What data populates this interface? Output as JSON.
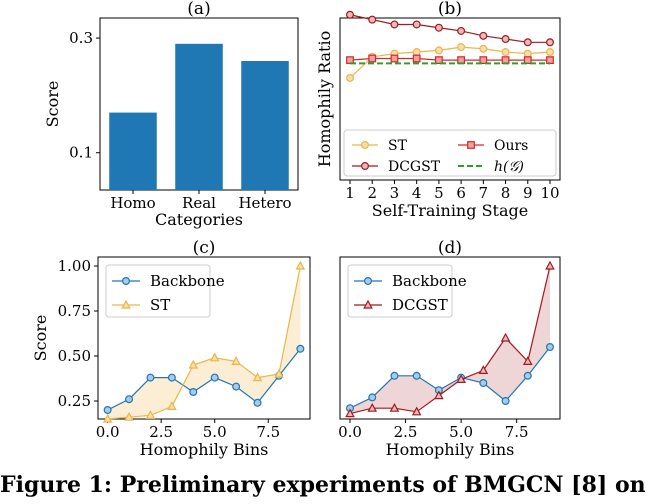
{
  "figure": {
    "caption": "Figure 1: Preliminary experiments of BMGCN [8] on"
  },
  "colors": {
    "bar": "#1f77b4",
    "st": "#e8b74a",
    "dcgst": "#a2191f",
    "ours": "#d6272c",
    "h_line": "#2ca02c",
    "backbone": "#1f77b4",
    "st_fill": "#fbeed5",
    "dcgst_fill": "#eed6d6"
  },
  "chart_data": [
    {
      "id": "a",
      "panel_label": "(a)",
      "type": "bar",
      "categories": [
        "Homo",
        "Real",
        "Hetero"
      ],
      "values": [
        0.17,
        0.29,
        0.26
      ],
      "xlabel": "Categories",
      "ylabel": "Score",
      "ylim": [
        0.035,
        0.335
      ],
      "yticks": [
        0.1,
        0.3
      ],
      "ytick_labels": [
        "0.1",
        "0.3"
      ]
    },
    {
      "id": "b",
      "panel_label": "(b)",
      "type": "line",
      "x": [
        1,
        2,
        3,
        4,
        5,
        6,
        7,
        8,
        9,
        10
      ],
      "xtick_labels": [
        "1",
        "2",
        "3",
        "4",
        "5",
        "6",
        "7",
        "8",
        "9",
        "10"
      ],
      "xlabel": "Self-Training Stage",
      "ylabel": "Homophily Ratio",
      "ylim": [
        0,
        1
      ],
      "yticks": [],
      "legend_position": "bottom",
      "series": [
        {
          "name": "ST",
          "marker": "circle",
          "values": [
            0.63,
            0.76,
            0.78,
            0.79,
            0.8,
            0.82,
            0.81,
            0.79,
            0.78,
            0.79
          ]
        },
        {
          "name": "DCGST",
          "marker": "circle",
          "values": [
            1.02,
            0.99,
            0.96,
            0.96,
            0.94,
            0.92,
            0.89,
            0.87,
            0.85,
            0.85
          ]
        },
        {
          "name": "Ours",
          "marker": "square",
          "values": [
            0.74,
            0.75,
            0.75,
            0.75,
            0.74,
            0.74,
            0.74,
            0.74,
            0.74,
            0.74
          ]
        },
        {
          "name": "h(𝒢)",
          "marker": "none",
          "dashed": true,
          "values": [
            0.72,
            0.72,
            0.72,
            0.72,
            0.72,
            0.72,
            0.72,
            0.72,
            0.72,
            0.72
          ]
        }
      ]
    },
    {
      "id": "c",
      "panel_label": "(c)",
      "type": "line",
      "x": [
        0,
        1,
        2,
        3,
        4,
        5,
        6,
        7,
        8,
        9
      ],
      "xlabel": "Homophily Bins",
      "ylabel": "Score",
      "xlim": [
        -0.45,
        9.45
      ],
      "ylim": [
        0.15,
        1.05
      ],
      "xticks": [
        0,
        2.5,
        5,
        7.5
      ],
      "xtick_labels": [
        "0.0",
        "2.5",
        "5.0",
        "7.5"
      ],
      "yticks": [
        0.25,
        0.5,
        0.75,
        1.0
      ],
      "ytick_labels": [
        "0.25",
        "0.50",
        "0.75",
        "1.00"
      ],
      "legend_position": "top-left",
      "series": [
        {
          "name": "Backbone",
          "marker": "circle",
          "values": [
            0.2,
            0.26,
            0.38,
            0.38,
            0.3,
            0.38,
            0.33,
            0.24,
            0.39,
            0.54
          ]
        },
        {
          "name": "ST",
          "marker": "triangle",
          "values": [
            0.15,
            0.16,
            0.17,
            0.22,
            0.45,
            0.49,
            0.47,
            0.38,
            0.4,
            1.0
          ]
        }
      ]
    },
    {
      "id": "d",
      "panel_label": "(d)",
      "type": "line",
      "x": [
        0,
        1,
        2,
        3,
        4,
        5,
        6,
        7,
        8,
        9
      ],
      "xlabel": "Homophily Bins",
      "ylabel": "",
      "xlim": [
        -0.45,
        9.45
      ],
      "ylim": [
        0.15,
        1.05
      ],
      "xticks": [
        0,
        2.5,
        5,
        7.5
      ],
      "xtick_labels": [
        "0.0",
        "2.5",
        "5.0",
        "7.5"
      ],
      "yticks": [],
      "legend_position": "top-left",
      "series": [
        {
          "name": "Backbone",
          "marker": "circle",
          "values": [
            0.21,
            0.27,
            0.39,
            0.39,
            0.31,
            0.38,
            0.35,
            0.25,
            0.39,
            0.55
          ]
        },
        {
          "name": "DCGST",
          "marker": "triangle",
          "values": [
            0.18,
            0.21,
            0.21,
            0.19,
            0.28,
            0.37,
            0.42,
            0.6,
            0.47,
            1.0
          ]
        }
      ]
    }
  ]
}
